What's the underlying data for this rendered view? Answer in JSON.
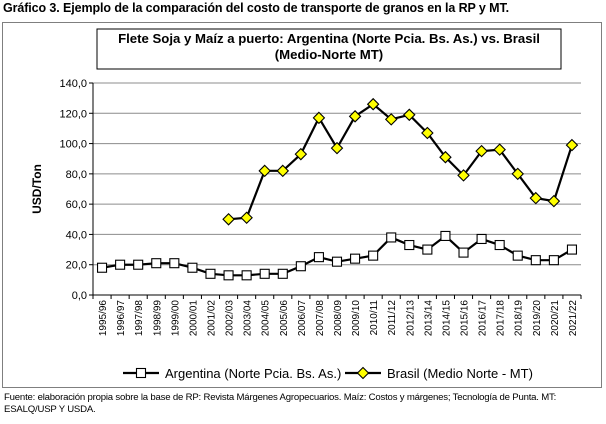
{
  "caption": "Gráfico 3. Ejemplo de la comparación del costo de transporte de granos en la RP y MT.",
  "footnote": "Fuente: elaboración propia sobre la base de RP: Revista Márgenes Agropecuarios. Maíz: Costos y márgenes; Tecnología de Punta. MT: ESALQ/USP Y USDA.",
  "chart_data": {
    "type": "line",
    "title_lines": [
      "Flete Soja y Maíz a puerto: Argentina (Norte Pcia. Bs. As.) vs. Brasil",
      "(Medio-Norte MT)"
    ],
    "ylabel": "USD/Ton",
    "xlabel": "",
    "ylim": [
      0,
      140
    ],
    "yticks": [
      0,
      20,
      40,
      60,
      80,
      100,
      120,
      140
    ],
    "ytick_labels": [
      "0,0",
      "20,0",
      "40,0",
      "60,0",
      "80,0",
      "100,0",
      "120,0",
      "140,0"
    ],
    "grid": true,
    "legend_position": "bottom",
    "categories": [
      "1995/96",
      "1996/97",
      "1997/98",
      "1998/99",
      "1999/00",
      "2000/01",
      "2001/02",
      "2002/03",
      "2003/04",
      "2004/05",
      "2005/06",
      "2006/07",
      "2007/08",
      "2008/09",
      "2009/10",
      "2010/11",
      "2011/12",
      "2012/13",
      "2013/14",
      "2014/15",
      "2015/16",
      "2016/17",
      "2017/18",
      "2018/19",
      "2019/20",
      "2020/21",
      "2021/22"
    ],
    "series": [
      {
        "name": "Argentina (Norte Pcia. Bs. As.)",
        "marker": "square",
        "marker_fill": "#ffffff",
        "line_color": "#000000",
        "values": [
          18,
          20,
          20,
          21,
          21,
          18,
          14,
          13,
          13,
          14,
          14,
          19,
          25,
          22,
          24,
          26,
          38,
          33,
          30,
          39,
          28,
          37,
          33,
          26,
          23,
          23,
          30
        ]
      },
      {
        "name": "Brasil (Medio Norte - MT)",
        "marker": "diamond",
        "marker_fill": "#ffff00",
        "line_color": "#000000",
        "values": [
          null,
          null,
          null,
          null,
          null,
          null,
          null,
          50,
          51,
          82,
          82,
          93,
          117,
          97,
          118,
          126,
          116,
          119,
          107,
          91,
          79,
          95,
          96,
          80,
          64,
          62,
          99
        ]
      }
    ]
  }
}
